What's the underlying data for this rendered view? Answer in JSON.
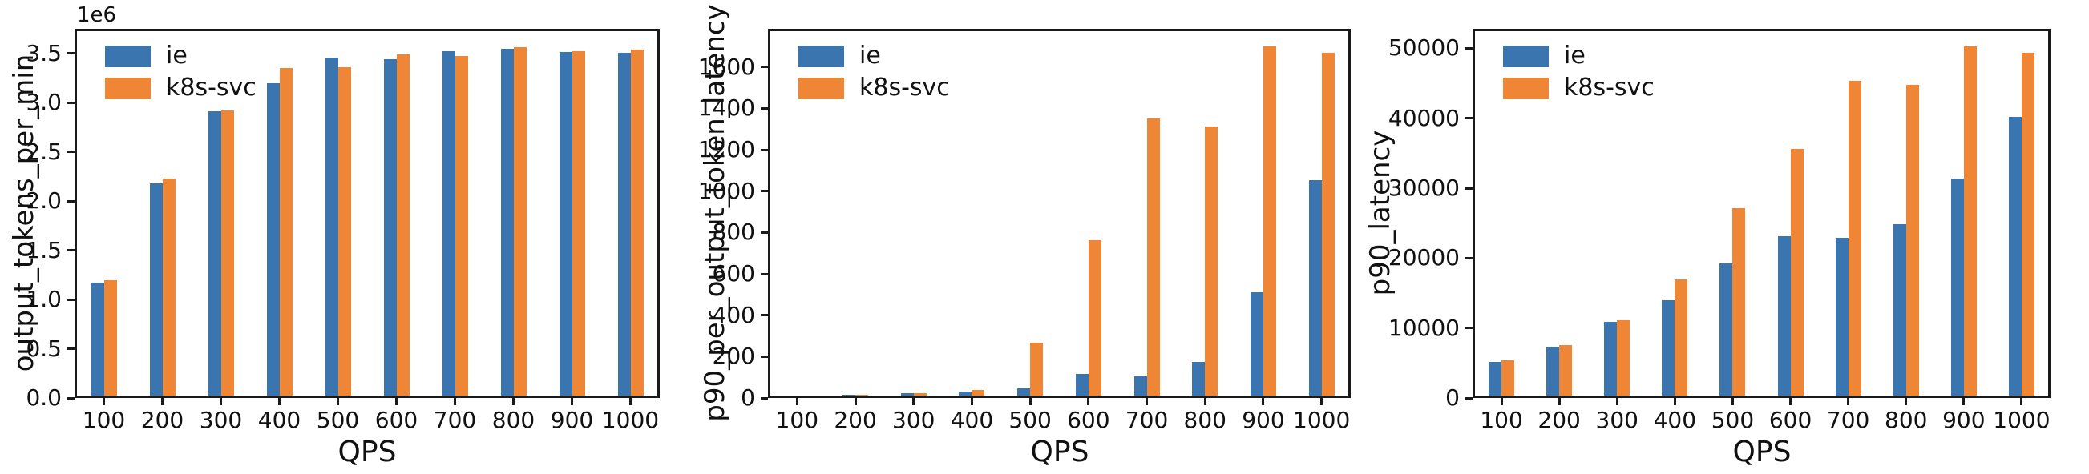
{
  "figure": {
    "background": "#ffffff",
    "axis_color": "#1a1a1a"
  },
  "legend": {
    "position": "upper-left",
    "items": [
      {
        "label": "ie",
        "color": "#3B75AF"
      },
      {
        "label": "k8s-svc",
        "color": "#EF8636"
      }
    ]
  },
  "chart_data": [
    {
      "type": "bar",
      "title": "",
      "ylabel": "output_tokens_per_min",
      "xlabel": "QPS",
      "offset_text": "1e6",
      "grid": false,
      "categories": [
        "100",
        "200",
        "300",
        "400",
        "500",
        "600",
        "700",
        "800",
        "900",
        "1000"
      ],
      "series": [
        {
          "name": "ie",
          "color": "#3B75AF",
          "values": [
            1170000,
            2180000,
            2915000,
            3200000,
            3455000,
            3440000,
            3525000,
            3550000,
            3515000,
            3510000
          ]
        },
        {
          "name": "k8s-svc",
          "color": "#EF8636",
          "values": [
            1195000,
            2225000,
            2920000,
            3355000,
            3360000,
            3490000,
            3470000,
            3560000,
            3525000,
            3540000
          ]
        }
      ],
      "ylim": [
        0,
        3750000
      ],
      "ytick_values": [
        0,
        500000,
        1000000,
        1500000,
        2000000,
        2500000,
        3000000,
        3500000
      ],
      "ytick_labels": [
        "0.0",
        "0.5",
        "1.0",
        "1.5",
        "2.0",
        "2.5",
        "3.0",
        "3.5"
      ]
    },
    {
      "type": "bar",
      "title": "",
      "ylabel": "p90_per_output_token_latency",
      "xlabel": "QPS",
      "offset_text": "",
      "grid": false,
      "categories": [
        "100",
        "200",
        "300",
        "400",
        "500",
        "600",
        "700",
        "800",
        "900",
        "1000"
      ],
      "series": [
        {
          "name": "ie",
          "color": "#3B75AF",
          "values": [
            8,
            15,
            22,
            32,
            47,
            115,
            105,
            175,
            513,
            1055
          ]
        },
        {
          "name": "k8s-svc",
          "color": "#EF8636",
          "values": [
            8,
            15,
            22,
            37,
            268,
            763,
            1352,
            1312,
            1698,
            1668
          ]
        }
      ],
      "ylim": [
        0,
        1785
      ],
      "ytick_values": [
        0,
        200,
        400,
        600,
        800,
        1000,
        1200,
        1400,
        1600
      ],
      "ytick_labels": [
        "0",
        "200",
        "400",
        "600",
        "800",
        "1000",
        "1200",
        "1400",
        "1600"
      ]
    },
    {
      "type": "bar",
      "title": "",
      "ylabel": "p90_latency",
      "xlabel": "QPS",
      "offset_text": "",
      "grid": false,
      "categories": [
        "100",
        "200",
        "300",
        "400",
        "500",
        "600",
        "700",
        "800",
        "900",
        "1000"
      ],
      "series": [
        {
          "name": "ie",
          "color": "#3B75AF",
          "values": [
            5200,
            7300,
            10900,
            14000,
            19300,
            23100,
            22900,
            24800,
            31400,
            40200
          ]
        },
        {
          "name": "k8s-svc",
          "color": "#EF8636",
          "values": [
            5400,
            7600,
            11100,
            16900,
            27200,
            35600,
            45300,
            44800,
            50300,
            49400
          ]
        }
      ],
      "ylim": [
        0,
        52800
      ],
      "ytick_values": [
        0,
        10000,
        20000,
        30000,
        40000,
        50000
      ],
      "ytick_labels": [
        "0",
        "10000",
        "20000",
        "30000",
        "40000",
        "50000"
      ]
    }
  ]
}
